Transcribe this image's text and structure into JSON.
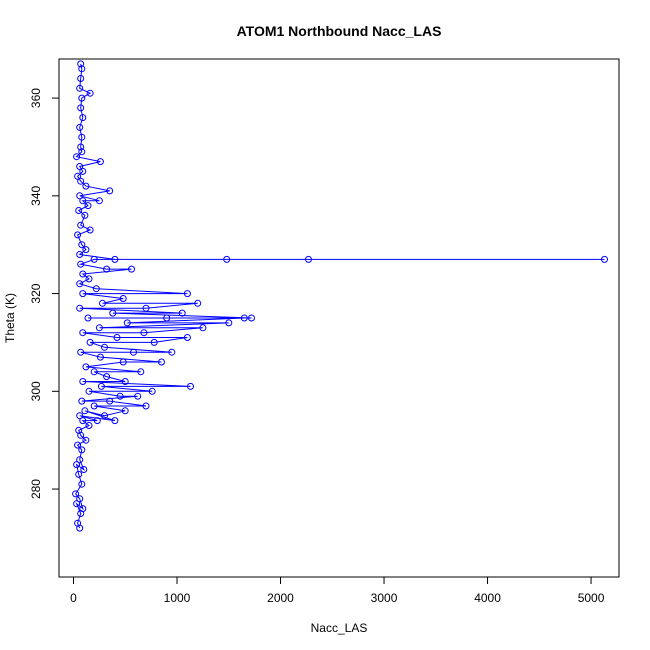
{
  "chart_data": {
    "type": "scatter",
    "title": "ATOM1 Northbound Nacc_LAS",
    "xlabel": "Nacc_LAS",
    "ylabel": "Theta (K)",
    "xlim": [
      -140,
      5270
    ],
    "ylim": [
      262,
      368
    ],
    "xticks": [
      0,
      1000,
      2000,
      3000,
      4000,
      5000
    ],
    "yticks": [
      280,
      300,
      320,
      340,
      360
    ],
    "grid": false,
    "legend": "none",
    "marker": "open-circle",
    "connected": true,
    "color": "#0000ff",
    "series": [
      {
        "points": [
          [
            60,
            272
          ],
          [
            40,
            273
          ],
          [
            70,
            275
          ],
          [
            30,
            277
          ],
          [
            90,
            276
          ],
          [
            60,
            278
          ],
          [
            20,
            279
          ],
          [
            80,
            281
          ],
          [
            50,
            283
          ],
          [
            30,
            285
          ],
          [
            100,
            284
          ],
          [
            60,
            286
          ],
          [
            80,
            288
          ],
          [
            40,
            289
          ],
          [
            120,
            290
          ],
          [
            70,
            291
          ],
          [
            50,
            292
          ],
          [
            150,
            293
          ],
          [
            90,
            294
          ],
          [
            230,
            294
          ],
          [
            60,
            295
          ],
          [
            400,
            294
          ],
          [
            110,
            296
          ],
          [
            300,
            295
          ],
          [
            500,
            296
          ],
          [
            200,
            297
          ],
          [
            700,
            297
          ],
          [
            350,
            298
          ],
          [
            80,
            298
          ],
          [
            620,
            299
          ],
          [
            450,
            299
          ],
          [
            150,
            300
          ],
          [
            760,
            300
          ],
          [
            270,
            301
          ],
          [
            1130,
            301
          ],
          [
            90,
            302
          ],
          [
            500,
            302
          ],
          [
            320,
            303
          ],
          [
            200,
            304
          ],
          [
            650,
            304
          ],
          [
            120,
            305
          ],
          [
            480,
            306
          ],
          [
            850,
            306
          ],
          [
            260,
            307
          ],
          [
            70,
            308
          ],
          [
            580,
            308
          ],
          [
            950,
            308
          ],
          [
            300,
            309
          ],
          [
            160,
            310
          ],
          [
            780,
            310
          ],
          [
            1100,
            311
          ],
          [
            420,
            311
          ],
          [
            90,
            312
          ],
          [
            680,
            312
          ],
          [
            1250,
            313
          ],
          [
            250,
            313
          ],
          [
            1500,
            314
          ],
          [
            520,
            314
          ],
          [
            1650,
            315
          ],
          [
            140,
            315
          ],
          [
            900,
            315
          ],
          [
            1720,
            315
          ],
          [
            380,
            316
          ],
          [
            1050,
            316
          ],
          [
            60,
            317
          ],
          [
            700,
            317
          ],
          [
            1200,
            318
          ],
          [
            280,
            318
          ],
          [
            480,
            319
          ],
          [
            90,
            320
          ],
          [
            1100,
            320
          ],
          [
            220,
            321
          ],
          [
            60,
            322
          ],
          [
            150,
            323
          ],
          [
            90,
            324
          ],
          [
            560,
            325
          ],
          [
            320,
            325
          ],
          [
            70,
            326
          ],
          [
            200,
            327
          ],
          [
            1480,
            327
          ],
          [
            2270,
            327
          ],
          [
            5130,
            327
          ],
          [
            400,
            327
          ],
          [
            60,
            328
          ],
          [
            120,
            329
          ],
          [
            80,
            330
          ],
          [
            40,
            332
          ],
          [
            160,
            333
          ],
          [
            70,
            334
          ],
          [
            110,
            336
          ],
          [
            50,
            337
          ],
          [
            140,
            338
          ],
          [
            90,
            339
          ],
          [
            250,
            339
          ],
          [
            60,
            340
          ],
          [
            350,
            341
          ],
          [
            120,
            342
          ],
          [
            70,
            343
          ],
          [
            40,
            344
          ],
          [
            90,
            345
          ],
          [
            60,
            346
          ],
          [
            260,
            347
          ],
          [
            30,
            348
          ],
          [
            80,
            349
          ],
          [
            70,
            350
          ],
          [
            80,
            352
          ],
          [
            60,
            354
          ],
          [
            90,
            356
          ],
          [
            70,
            358
          ],
          [
            80,
            360
          ],
          [
            160,
            361
          ],
          [
            60,
            362
          ],
          [
            70,
            364
          ],
          [
            80,
            366
          ],
          [
            70,
            367
          ]
        ]
      }
    ]
  }
}
